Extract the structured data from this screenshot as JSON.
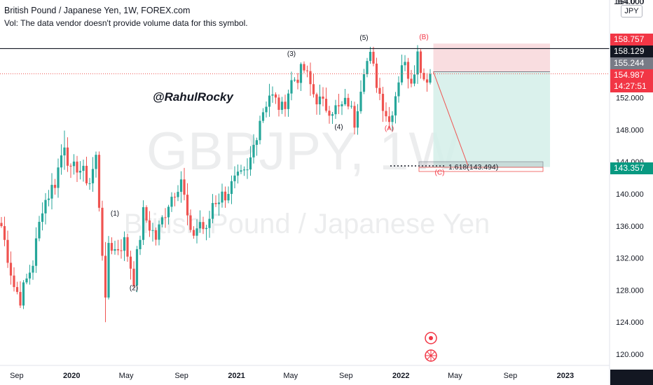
{
  "header": {
    "title": "British Pound / Japanese Yen, 1W, FOREX.com",
    "volume_note": "Vol: The data vendor doesn't provide volume data for this symbol."
  },
  "watermark": {
    "symbol": "GBPJPY, 1W",
    "name": "British Pound / Japanese Yen"
  },
  "author_tag": "@RahulRocky",
  "currency_badge": "JPY",
  "price_tags": {
    "top_clipped": "164.000",
    "target_high": "158.757",
    "hline": "158.129",
    "entry": "155.244",
    "last": "154.987",
    "countdown": "14:27:51",
    "target_low": "143.357"
  },
  "fib_label": "1.618(143.494)",
  "colors": {
    "up": "#26a69a",
    "down": "#ef5350",
    "wave_black": "#131722",
    "wave_red": "#f23645",
    "stop_zone": "#f8d7da",
    "target_zone": "#d4efe9"
  },
  "chart_data": {
    "type": "candlestick",
    "symbol": "GBPJPY",
    "interval": "1W",
    "y_axis": {
      "ticks": [
        "164.000",
        "152.000",
        "148.000",
        "144.000",
        "140.000",
        "136.000",
        "132.000",
        "128.000",
        "124.000",
        "120.000"
      ],
      "range": [
        119,
        166
      ]
    },
    "x_axis": {
      "ticks": [
        "Sep",
        "2020",
        "May",
        "Sep",
        "2021",
        "May",
        "Sep",
        "2022",
        "May",
        "Sep",
        "2023"
      ]
    },
    "path_points": [
      [
        "2019-07-29",
        136.0
      ],
      [
        "2019-08-26",
        128.5
      ],
      [
        "2019-09-09",
        127.0
      ],
      [
        "2019-10-07",
        131.5
      ],
      [
        "2019-10-28",
        138.5
      ],
      [
        "2019-11-25",
        141.5
      ],
      [
        "2019-12-16",
        146.5
      ],
      [
        "2019-12-30",
        142.5
      ],
      [
        "2020-01-13",
        143.5
      ],
      [
        "2020-02-10",
        141.5
      ],
      [
        "2020-02-24",
        144.5
      ],
      [
        "2020-03-09",
        133.0
      ],
      [
        "2020-03-16",
        126.0
      ],
      [
        "2020-03-23",
        134.0
      ],
      [
        "2020-04-06",
        133.0
      ],
      [
        "2020-04-27",
        134.0
      ],
      [
        "2020-05-18",
        129.5
      ],
      [
        "2020-06-08",
        137.5
      ],
      [
        "2020-07-06",
        134.5
      ],
      [
        "2020-08-03",
        139.0
      ],
      [
        "2020-08-31",
        142.0
      ],
      [
        "2020-09-21",
        134.5
      ],
      [
        "2020-10-12",
        136.5
      ],
      [
        "2020-10-26",
        135.0
      ],
      [
        "2020-11-09",
        139.0
      ],
      [
        "2020-12-07",
        140.0
      ],
      [
        "2020-12-28",
        141.5
      ],
      [
        "2021-01-25",
        142.5
      ],
      [
        "2021-02-22",
        149.5
      ],
      [
        "2021-03-15",
        152.5
      ],
      [
        "2021-04-12",
        150.5
      ],
      [
        "2021-05-03",
        154.0
      ],
      [
        "2021-05-31",
        155.5
      ],
      [
        "2021-06-21",
        152.5
      ],
      [
        "2021-07-12",
        151.0
      ],
      [
        "2021-08-16",
        150.5
      ],
      [
        "2021-09-06",
        151.5
      ],
      [
        "2021-09-20",
        149.0
      ],
      [
        "2021-10-11",
        156.0
      ],
      [
        "2021-10-25",
        157.0
      ],
      [
        "2021-11-15",
        152.5
      ],
      [
        "2021-12-06",
        149.0
      ],
      [
        "2021-12-20",
        152.5
      ],
      [
        "2022-01-03",
        156.5
      ],
      [
        "2022-01-24",
        154.5
      ],
      [
        "2022-02-07",
        157.5
      ],
      [
        "2022-02-21",
        154.5
      ],
      [
        "2022-03-07",
        155.0
      ]
    ],
    "waves": [
      {
        "label": "(1)",
        "color": "black"
      },
      {
        "label": "(2)",
        "color": "black"
      },
      {
        "label": "(3)",
        "color": "black"
      },
      {
        "label": "(4)",
        "color": "black"
      },
      {
        "label": "(5)",
        "color": "black"
      },
      {
        "label": "(A)",
        "color": "red"
      },
      {
        "label": "(B)",
        "color": "red"
      },
      {
        "label": "(C)",
        "color": "red"
      }
    ],
    "levels": {
      "horizontal_line": 158.129,
      "entry": 155.244,
      "last": 154.987,
      "stop": 158.757,
      "target": 143.357,
      "fib_1618": 143.494
    },
    "grid": false
  }
}
